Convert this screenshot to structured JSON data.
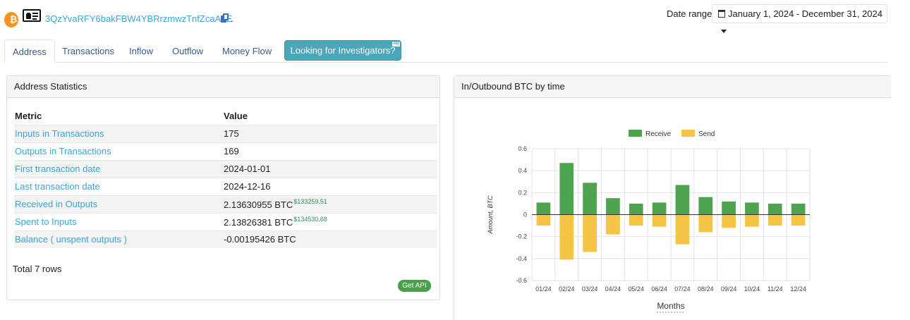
{
  "header": {
    "address": "3QzYvaRFY6bakFBW4YBRrzmwzTnfZcaA6E",
    "address_suffix": ".",
    "coin_symbol": "₿",
    "date_range_label": "Date range",
    "date_range_value": "January 1, 2024 - December 31, 2024"
  },
  "tabs": [
    {
      "label": "Address",
      "active": true
    },
    {
      "label": "Transactions",
      "active": false
    },
    {
      "label": "Inflow",
      "active": false
    },
    {
      "label": "Outflow",
      "active": false
    },
    {
      "label": "Money Flow",
      "active": false
    }
  ],
  "investigators_button": {
    "label": "Looking for Investigators?",
    "badge": "AD"
  },
  "stats": {
    "title": "Address Statistics",
    "col_metric": "Metric",
    "col_value": "Value",
    "rows": [
      {
        "metric": "Inputs in Transactions",
        "value": "175",
        "usd": ""
      },
      {
        "metric": "Outputs in Transactions",
        "value": "169",
        "usd": ""
      },
      {
        "metric": "First transaction date",
        "value": "2024-01-01",
        "usd": ""
      },
      {
        "metric": "Last transaction date",
        "value": "2024-12-16",
        "usd": ""
      },
      {
        "metric": "Received in Outputs",
        "value": "2.13630955 BTC",
        "usd": "$133259.51"
      },
      {
        "metric": "Spent to Inputs",
        "value": "2.13826381 BTC",
        "usd": "$134530.68"
      },
      {
        "metric": "Balance ( unspent outputs )",
        "value": "-0.00195426 BTC",
        "usd": ""
      }
    ],
    "total_rows": "Total 7 rows",
    "get_api": "Get API"
  },
  "chart_panel": {
    "title": "In/Outbound BTC by time"
  },
  "colors": {
    "receive": "#4ea34e",
    "send": "#f6c444",
    "link": "#3aa6d6",
    "accent": "#4aa6b8"
  },
  "chart_data": {
    "type": "bar",
    "categories": [
      "01/24",
      "02/24",
      "03/24",
      "04/24",
      "05/24",
      "06/24",
      "07/24",
      "08/24",
      "09/24",
      "10/24",
      "11/24",
      "12/24"
    ],
    "series": [
      {
        "name": "Receive",
        "values": [
          0.11,
          0.47,
          0.29,
          0.15,
          0.1,
          0.11,
          0.27,
          0.16,
          0.12,
          0.11,
          0.1,
          0.1
        ]
      },
      {
        "name": "Send",
        "values": [
          -0.1,
          -0.41,
          -0.34,
          -0.18,
          -0.1,
          -0.11,
          -0.27,
          -0.16,
          -0.12,
          -0.11,
          -0.1,
          -0.1
        ]
      }
    ],
    "xlabel": "Months",
    "ylabel": "Amount, BTC",
    "ylim": [
      -0.6,
      0.6
    ],
    "yticks": [
      "0.6",
      "0.4",
      "0.2",
      "0",
      "-0.2",
      "-0.4",
      "-0.6"
    ],
    "grid": true,
    "legend": "top"
  }
}
